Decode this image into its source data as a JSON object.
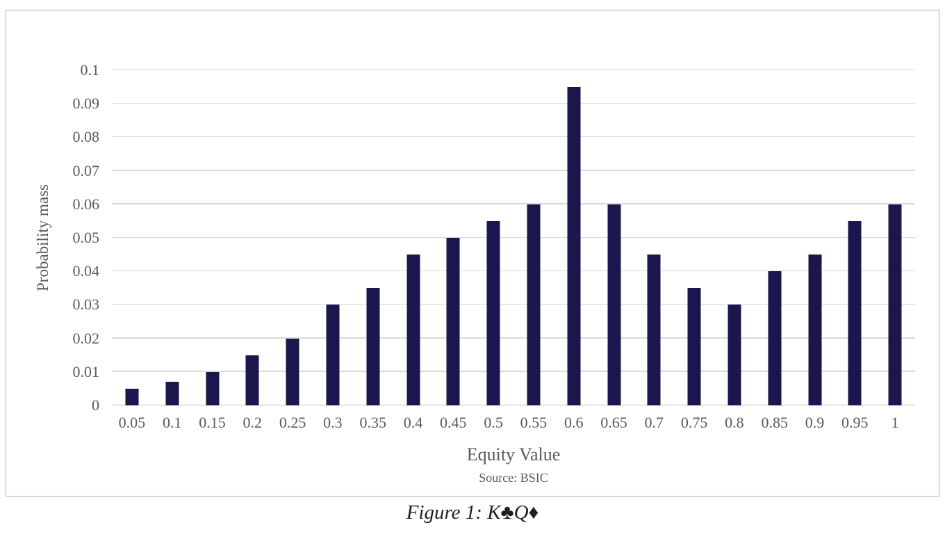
{
  "chart_data": {
    "type": "bar",
    "title": "",
    "xlabel": "Equity Value",
    "ylabel": "Probability mass",
    "source_note": "Source: BSIC",
    "caption": "Figure 1: K♣Q♦",
    "categories": [
      "0.05",
      "0.1",
      "0.15",
      "0.2",
      "0.25",
      "0.3",
      "0.35",
      "0.4",
      "0.45",
      "0.5",
      "0.55",
      "0.6",
      "0.65",
      "0.7",
      "0.75",
      "0.8",
      "0.85",
      "0.9",
      "0.95",
      "1"
    ],
    "values": [
      0.005,
      0.007,
      0.01,
      0.015,
      0.02,
      0.03,
      0.035,
      0.045,
      0.05,
      0.055,
      0.06,
      0.095,
      0.06,
      0.045,
      0.035,
      0.03,
      0.04,
      0.045,
      0.055,
      0.06
    ],
    "yticks": [
      "0",
      "0.01",
      "0.02",
      "0.03",
      "0.04",
      "0.05",
      "0.06",
      "0.07",
      "0.08",
      "0.09",
      "0.1"
    ],
    "ylim": [
      0,
      0.1
    ],
    "grid": true,
    "legend": false,
    "colors": {
      "bar": "#1a164e",
      "gridline": "#d9d9d9",
      "axis_line": "#bfbfbf",
      "tick_text": "#595959",
      "border": "#b0b0b0",
      "caption_text": "#1f1f1f"
    }
  }
}
